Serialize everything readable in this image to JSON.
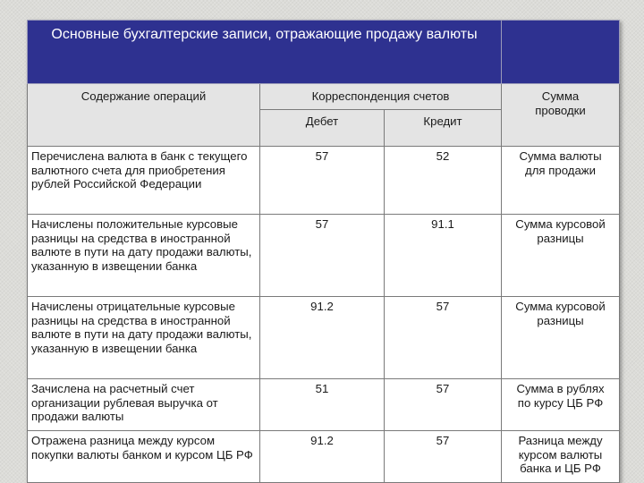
{
  "title": "Основные бухгалтерские записи, отражающие продажу валюты",
  "headers": {
    "operation": "Содержание операций",
    "correspondence": "Корреспонденция счетов",
    "debit": "Дебет",
    "credit": "Кредит",
    "amount": "Сумма проводки"
  },
  "rows": [
    {
      "operation": "Перечислена валюта в банк с текущего валютного счета для приобретения рублей Российской Федерации",
      "debit": "57",
      "credit": "52",
      "amount": "Сумма валюты для продажи"
    },
    {
      "operation": "Начислены положительные курсовые разницы на средства в иностранной валюте в пути на дату продажи валюты, указанную в извещении банка",
      "debit": "57",
      "credit": "91.1",
      "amount": "Сумма курсовой разницы"
    },
    {
      "operation": "Начислены отрицательные курсовые разницы на средства в иностранной валюте в пути на дату продажи валюты, указанную в извещении банка",
      "debit": "91.2",
      "credit": "57",
      "amount": "Сумма курсовой разницы"
    },
    {
      "operation": "Зачислена на расчетный счет организации рублевая выручка от продажи валюты",
      "debit": "51",
      "credit": "57",
      "amount": "Сумма в рублях по курсу ЦБ РФ"
    },
    {
      "operation": "Отражена разница между курсом покупки валюты банком и курсом ЦБ РФ",
      "debit": "91.2",
      "credit": "57",
      "amount": "Разница между курсом валюты банка и ЦБ РФ"
    }
  ]
}
